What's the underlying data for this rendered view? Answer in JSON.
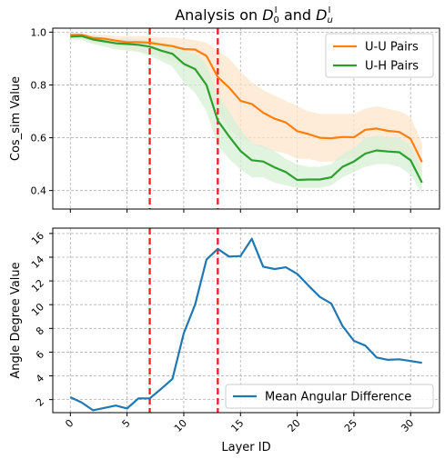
{
  "figure": {
    "title_main": "Analysis on ",
    "title_d0": "D",
    "title_d0_sub": "0",
    "title_d0_sup": "I",
    "title_and": " and ",
    "title_du": "D",
    "title_du_sub": "u",
    "title_du_sup": "I"
  },
  "chart_data": [
    {
      "type": "line",
      "ylabel": "Cos_sim Value",
      "xlabel": "",
      "xlim": [
        -1.55,
        32.55
      ],
      "ylim": [
        0.33,
        1.015
      ],
      "yticks": [
        0.4,
        0.6,
        0.8,
        1.0
      ],
      "ytick_labels": [
        "0.4",
        "0.6",
        "0.8",
        "1.0"
      ],
      "grid": true,
      "legend_position": "top-right",
      "vlines": [
        7,
        13
      ],
      "series": [
        {
          "name": "U-U Pairs",
          "color": "#ff7f0e",
          "x": [
            0,
            1,
            2,
            3,
            4,
            5,
            6,
            7,
            8,
            9,
            10,
            11,
            12,
            13,
            14,
            15,
            16,
            17,
            18,
            19,
            20,
            21,
            22,
            23,
            24,
            25,
            26,
            27,
            28,
            29,
            30,
            31
          ],
          "values": [
            0.99,
            0.99,
            0.978,
            0.975,
            0.968,
            0.962,
            0.962,
            0.96,
            0.953,
            0.947,
            0.936,
            0.934,
            0.91,
            0.83,
            0.79,
            0.74,
            0.728,
            0.695,
            0.672,
            0.658,
            0.625,
            0.614,
            0.6,
            0.598,
            0.603,
            0.602,
            0.63,
            0.635,
            0.626,
            0.622,
            0.596,
            0.508
          ],
          "band_lower": [
            0.978,
            0.978,
            0.962,
            0.955,
            0.945,
            0.935,
            0.93,
            0.92,
            0.905,
            0.89,
            0.87,
            0.85,
            0.8,
            0.7,
            0.63,
            0.6,
            0.58,
            0.56,
            0.55,
            0.54,
            0.52,
            0.52,
            0.51,
            0.51,
            0.52,
            0.52,
            0.54,
            0.55,
            0.54,
            0.54,
            0.52,
            0.45
          ],
          "band_upper": [
            0.995,
            0.995,
            0.99,
            0.99,
            0.985,
            0.985,
            0.985,
            0.985,
            0.98,
            0.98,
            0.975,
            0.97,
            0.96,
            0.93,
            0.9,
            0.85,
            0.81,
            0.78,
            0.76,
            0.74,
            0.72,
            0.7,
            0.69,
            0.69,
            0.69,
            0.69,
            0.71,
            0.72,
            0.71,
            0.7,
            0.68,
            0.58
          ],
          "band_color": "#fde5cc"
        },
        {
          "name": "U-H Pairs",
          "color": "#2ca02c",
          "x": [
            0,
            1,
            2,
            3,
            4,
            5,
            6,
            7,
            8,
            9,
            10,
            11,
            12,
            13,
            14,
            15,
            16,
            17,
            18,
            19,
            20,
            21,
            22,
            23,
            24,
            25,
            26,
            27,
            28,
            29,
            30,
            31
          ],
          "values": [
            0.983,
            0.985,
            0.972,
            0.965,
            0.958,
            0.955,
            0.952,
            0.945,
            0.93,
            0.918,
            0.88,
            0.86,
            0.8,
            0.665,
            0.605,
            0.55,
            0.515,
            0.51,
            0.488,
            0.47,
            0.44,
            0.442,
            0.442,
            0.45,
            0.49,
            0.51,
            0.54,
            0.552,
            0.548,
            0.545,
            0.515,
            0.43
          ],
          "band_lower": [
            0.97,
            0.97,
            0.955,
            0.945,
            0.935,
            0.93,
            0.925,
            0.91,
            0.89,
            0.87,
            0.81,
            0.77,
            0.7,
            0.57,
            0.52,
            0.48,
            0.45,
            0.45,
            0.43,
            0.42,
            0.41,
            0.41,
            0.41,
            0.42,
            0.45,
            0.47,
            0.49,
            0.5,
            0.5,
            0.49,
            0.46,
            0.39
          ],
          "band_upper": [
            0.99,
            0.992,
            0.985,
            0.98,
            0.975,
            0.975,
            0.972,
            0.97,
            0.96,
            0.955,
            0.93,
            0.92,
            0.88,
            0.76,
            0.7,
            0.63,
            0.58,
            0.57,
            0.55,
            0.52,
            0.5,
            0.49,
            0.49,
            0.5,
            0.54,
            0.56,
            0.6,
            0.61,
            0.6,
            0.6,
            0.57,
            0.48
          ],
          "band_color": "#d5f0d5"
        }
      ]
    },
    {
      "type": "line",
      "ylabel": "Angle Degree Value",
      "xlabel": "Layer ID",
      "xlim": [
        -1.55,
        32.55
      ],
      "ylim": [
        0.9,
        16.45
      ],
      "xticks": [
        0,
        5,
        10,
        15,
        20,
        25,
        30
      ],
      "xtick_labels": [
        "0",
        "5",
        "10",
        "15",
        "20",
        "25",
        "30"
      ],
      "yticks": [
        2,
        4,
        6,
        8,
        10,
        12,
        14,
        16
      ],
      "ytick_labels": [
        "2",
        "4",
        "6",
        "8",
        "10",
        "12",
        "14",
        "16"
      ],
      "grid": true,
      "legend_position": "bottom-right",
      "vlines": [
        7,
        13
      ],
      "series": [
        {
          "name": "Mean Angular Difference",
          "color": "#1f77b4",
          "x": [
            0,
            1,
            2,
            3,
            4,
            5,
            6,
            7,
            8,
            9,
            10,
            11,
            12,
            13,
            14,
            15,
            16,
            17,
            18,
            19,
            20,
            21,
            22,
            23,
            24,
            25,
            26,
            27,
            28,
            29,
            30,
            31
          ],
          "values": [
            2.2,
            1.75,
            1.1,
            1.3,
            1.5,
            1.25,
            2.1,
            2.1,
            2.9,
            3.75,
            7.6,
            10.0,
            13.8,
            14.7,
            14.05,
            14.1,
            15.55,
            13.2,
            13.0,
            13.15,
            12.6,
            11.6,
            10.65,
            10.1,
            8.2,
            6.95,
            6.55,
            5.55,
            5.35,
            5.4,
            5.25,
            5.1
          ]
        }
      ]
    }
  ]
}
